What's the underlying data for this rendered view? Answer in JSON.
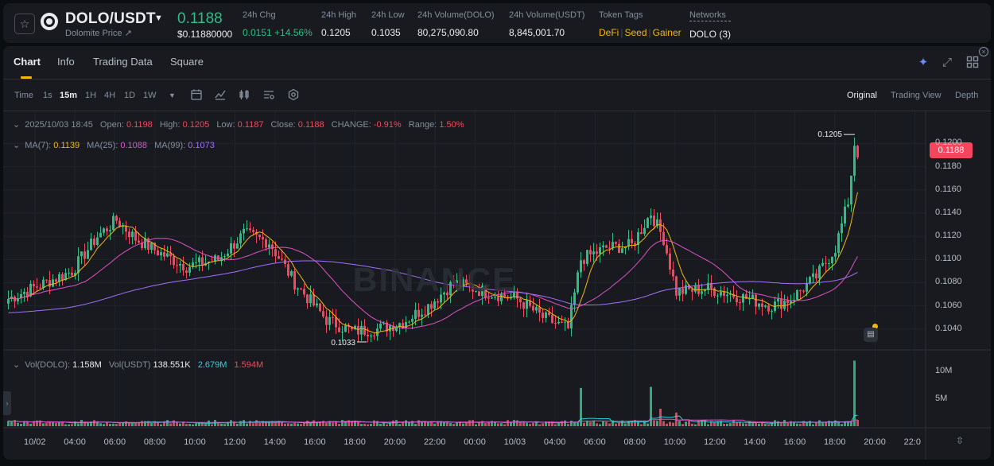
{
  "header": {
    "pair": "DOLO/USDT",
    "sub_link": "Dolomite Price ↗",
    "last_price": "0.1188",
    "last_price_usd": "$0.11880000",
    "stats": [
      {
        "label": "24h Chg",
        "value": "0.0151 +14.56%"
      },
      {
        "label": "24h High",
        "value": "0.1205"
      },
      {
        "label": "24h Low",
        "value": "0.1035"
      },
      {
        "label": "24h Volume(DOLO)",
        "value": "80,275,090.80"
      },
      {
        "label": "24h Volume(USDT)",
        "value": "8,845,001.70"
      }
    ],
    "token_tags_label": "Token Tags",
    "token_tags": [
      "DeFi",
      "Seed",
      "Gainer"
    ],
    "networks_label": "Networks",
    "networks_value": "DOLO (3)"
  },
  "tabs": [
    "Chart",
    "Info",
    "Trading Data",
    "Square"
  ],
  "timeframes": [
    "Time",
    "1s",
    "15m",
    "1H",
    "4H",
    "1D",
    "1W"
  ],
  "active_timeframe": "15m",
  "views": [
    "Original",
    "Trading View",
    "Depth"
  ],
  "active_view": "Original",
  "ohlc_legend": {
    "datetime": "2025/10/03 18:45",
    "open_label": "Open:",
    "open": "0.1198",
    "high_label": "High:",
    "high": "0.1205",
    "low_label": "Low:",
    "low": "0.1187",
    "close_label": "Close:",
    "close": "0.1188",
    "change_label": "CHANGE:",
    "change": "-0.91%",
    "range_label": "Range:",
    "range": "1.50%"
  },
  "ma_legend": {
    "ma7_label": "MA(7):",
    "ma7": "0.1139",
    "ma25_label": "MA(25):",
    "ma25": "0.1088",
    "ma99_label": "MA(99):",
    "ma99": "0.1073"
  },
  "vol_legend": {
    "dolo_label": "Vol(DOLO):",
    "dolo": "1.158M",
    "usdt_label": "Vol(USDT)",
    "usdt": "138.551K",
    "v2": "2.679M",
    "v3": "1.594M"
  },
  "watermark": "BINANCE",
  "current_price_tag": "0.1188",
  "high_marker": "0.1205",
  "low_marker": "0.1033",
  "price_scale": [
    "0.1200",
    "0.1180",
    "0.1160",
    "0.1140",
    "0.1120",
    "0.1100",
    "0.1080",
    "0.1060",
    "0.1040"
  ],
  "volume_scale": [
    "10M",
    "5M"
  ],
  "time_axis": [
    "10/02",
    "04:00",
    "06:00",
    "08:00",
    "10:00",
    "12:00",
    "14:00",
    "16:00",
    "18:00",
    "20:00",
    "22:00",
    "00:00",
    "10/03",
    "04:00",
    "06:00",
    "08:00",
    "10:00",
    "12:00",
    "14:00",
    "16:00",
    "18:00",
    "20:00",
    "22:0"
  ],
  "colors": {
    "up": "#2ebd85",
    "down": "#f6465d",
    "ma7": "#f0b90b",
    "ma25": "#e052c8",
    "ma99": "#a370f7",
    "vol_ma": "#2bd3e0"
  },
  "chart_data": {
    "type": "candlestick",
    "interval": "15m",
    "price_range": [
      0.1022,
      0.1214
    ],
    "anchors": [
      {
        "t": 0,
        "p": 0.1066
      },
      {
        "t": 10,
        "p": 0.1078
      },
      {
        "t": 20,
        "p": 0.109
      },
      {
        "t": 28,
        "p": 0.112
      },
      {
        "t": 34,
        "p": 0.1134
      },
      {
        "t": 40,
        "p": 0.1118
      },
      {
        "t": 48,
        "p": 0.1105
      },
      {
        "t": 56,
        "p": 0.1094
      },
      {
        "t": 66,
        "p": 0.11
      },
      {
        "t": 74,
        "p": 0.1122
      },
      {
        "t": 82,
        "p": 0.1115
      },
      {
        "t": 90,
        "p": 0.108
      },
      {
        "t": 100,
        "p": 0.1048
      },
      {
        "t": 108,
        "p": 0.1038
      },
      {
        "t": 116,
        "p": 0.104
      },
      {
        "t": 124,
        "p": 0.1046
      },
      {
        "t": 132,
        "p": 0.106
      },
      {
        "t": 140,
        "p": 0.108
      },
      {
        "t": 150,
        "p": 0.1072
      },
      {
        "t": 160,
        "p": 0.1066
      },
      {
        "t": 168,
        "p": 0.105
      },
      {
        "t": 176,
        "p": 0.104
      },
      {
        "t": 180,
        "p": 0.11
      },
      {
        "t": 188,
        "p": 0.111
      },
      {
        "t": 196,
        "p": 0.1112
      },
      {
        "t": 202,
        "p": 0.114
      },
      {
        "t": 206,
        "p": 0.1118
      },
      {
        "t": 210,
        "p": 0.1072
      },
      {
        "t": 220,
        "p": 0.1075
      },
      {
        "t": 230,
        "p": 0.1068
      },
      {
        "t": 240,
        "p": 0.106
      },
      {
        "t": 246,
        "p": 0.1066
      },
      {
        "t": 254,
        "p": 0.1085
      },
      {
        "t": 260,
        "p": 0.111
      },
      {
        "t": 264,
        "p": 0.115
      },
      {
        "t": 266,
        "p": 0.1198
      },
      {
        "t": 267,
        "p": 0.1188
      }
    ],
    "volume_spikes": [
      {
        "t": 180,
        "v": 7.0
      },
      {
        "t": 202,
        "v": 7.2
      },
      {
        "t": 205,
        "v": 3.2
      },
      {
        "t": 210,
        "v": 2.5
      },
      {
        "t": 266,
        "v": 12.0
      },
      {
        "t": 267,
        "v": 1.16
      }
    ],
    "volume_range": [
      0,
      12.5
    ]
  }
}
